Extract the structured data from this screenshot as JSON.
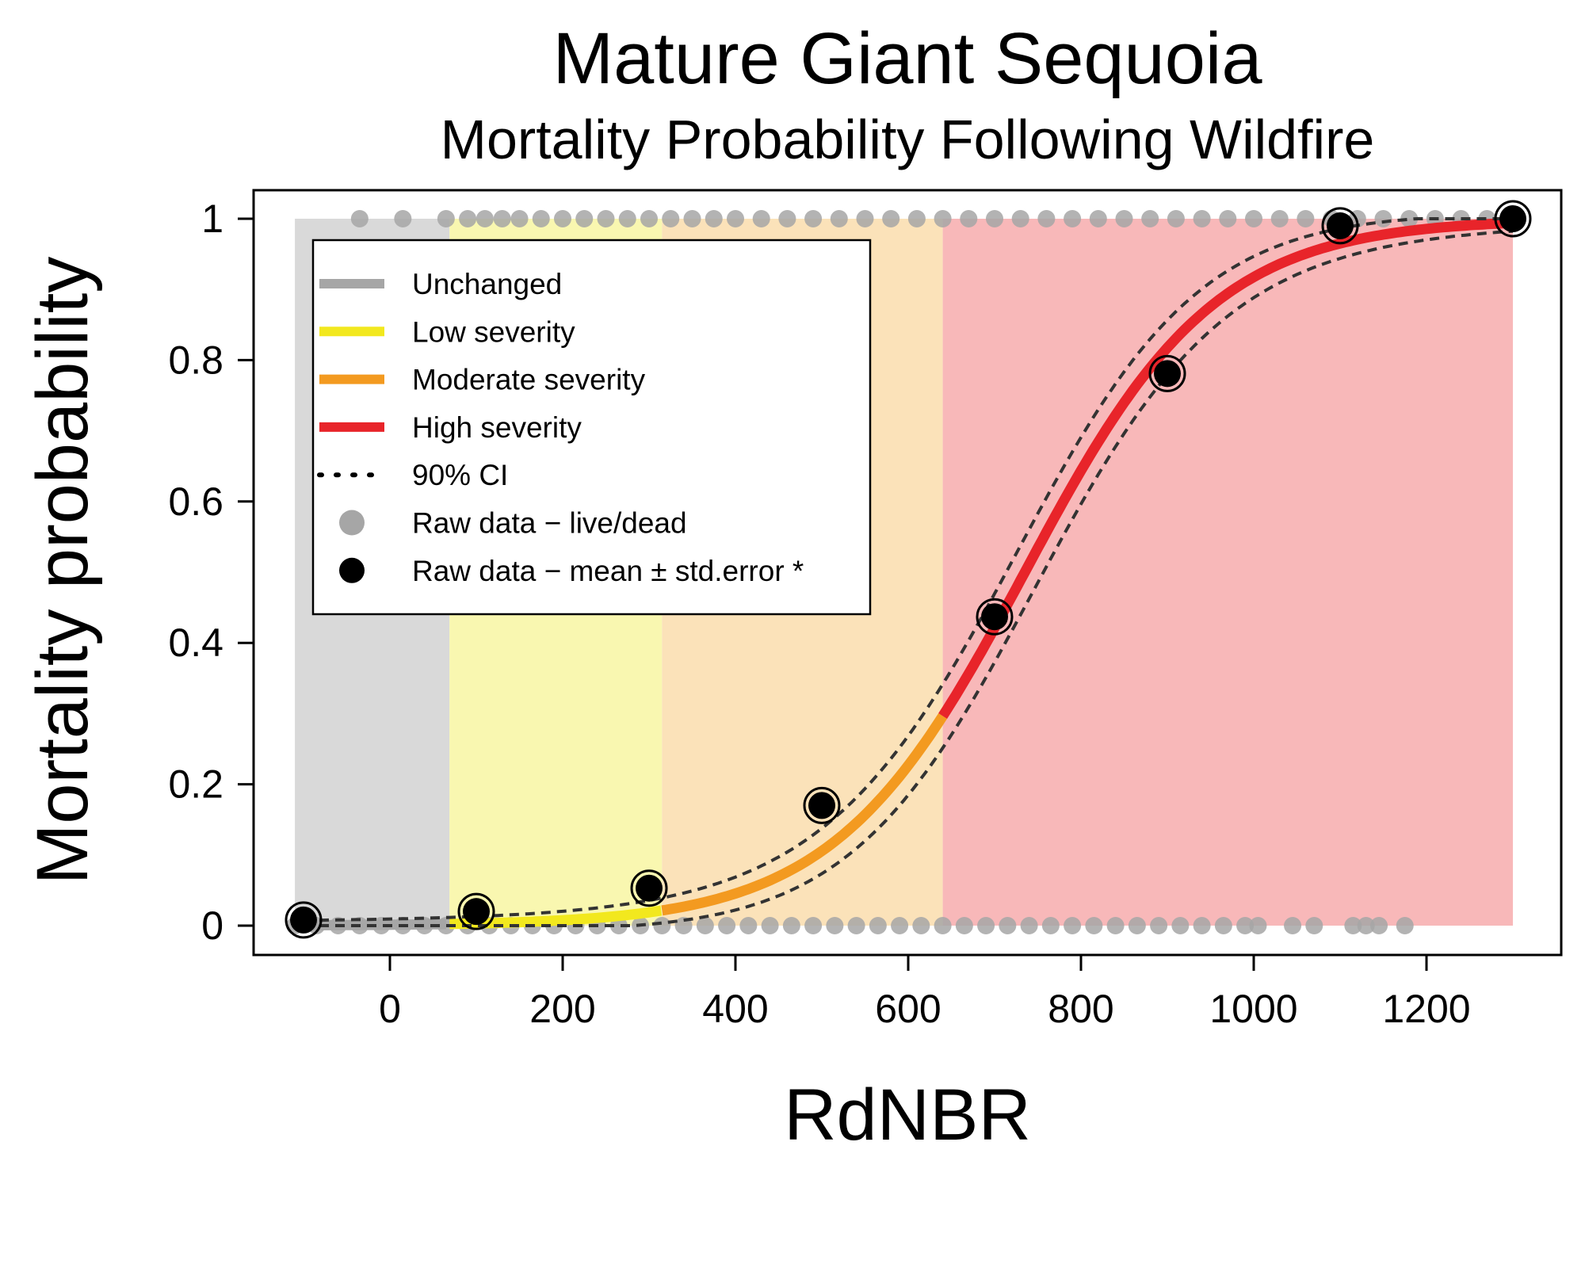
{
  "chart_data": {
    "type": "line",
    "title": "Mature Giant Sequoia",
    "subtitle": "Mortality Probability Following Wildfire",
    "xlabel": "RdNBR",
    "ylabel": "Mortality probability",
    "xlim": [
      -160,
      1350
    ],
    "ylim": [
      -0.04,
      1.04
    ],
    "x_ticks": [
      0,
      200,
      400,
      600,
      800,
      1000,
      1200
    ],
    "x_tick_labels": [
      "0",
      "200",
      "400",
      "600",
      "800",
      "1000",
      "1200"
    ],
    "y_ticks": [
      0,
      0.2,
      0.4,
      0.6,
      0.8,
      1
    ],
    "y_tick_labels": [
      "0",
      "0.2",
      "0.4",
      "0.6",
      "0.8",
      "1"
    ],
    "grid": false,
    "legend_position": "top-left",
    "legend": [
      {
        "label": "Unchanged",
        "kind": "line",
        "color": "#a6a6a6"
      },
      {
        "label": "Low severity",
        "kind": "line",
        "color": "#f2e81e"
      },
      {
        "label": "Moderate severity",
        "kind": "line",
        "color": "#f39a20"
      },
      {
        "label": "High severity",
        "kind": "line",
        "color": "#e8242a"
      },
      {
        "label": "90% CI",
        "kind": "dotted",
        "color": "#000000"
      },
      {
        "label": "Raw data − live/dead",
        "kind": "point",
        "color": "#a6a6a6"
      },
      {
        "label": "Raw data − mean ± std.error *",
        "kind": "point",
        "color": "#000000"
      }
    ],
    "severity_bands": [
      {
        "name": "Unchanged",
        "x_range": [
          -110,
          69
        ],
        "color": "#d9d9d9"
      },
      {
        "name": "Low severity",
        "x_range": [
          69,
          315
        ],
        "color": "#f9f7b0"
      },
      {
        "name": "Moderate severity",
        "x_range": [
          315,
          640
        ],
        "color": "#fbe2b9"
      },
      {
        "name": "High severity",
        "x_range": [
          640,
          1300
        ],
        "color": "#f8b8b9"
      }
    ],
    "model": {
      "form": "logistic",
      "x_range": [
        -100,
        1300
      ],
      "midpoint": 735,
      "scale": 110,
      "ci_band": 0.022
    },
    "mean_points": [
      {
        "x": -100,
        "y": 0.008
      },
      {
        "x": 100,
        "y": 0.02
      },
      {
        "x": 300,
        "y": 0.053
      },
      {
        "x": 500,
        "y": 0.17
      },
      {
        "x": 700,
        "y": 0.437
      },
      {
        "x": 900,
        "y": 0.781
      },
      {
        "x": 1100,
        "y": 0.99
      },
      {
        "x": 1300,
        "y": 1.0
      }
    ],
    "raw_live_dead": {
      "dead_y1": [
        -35,
        15,
        65,
        90,
        110,
        130,
        150,
        175,
        200,
        225,
        250,
        275,
        300,
        325,
        350,
        375,
        400,
        430,
        460,
        490,
        520,
        550,
        580,
        610,
        640,
        670,
        700,
        730,
        760,
        790,
        820,
        850,
        880,
        910,
        940,
        970,
        1000,
        1030,
        1060,
        1090,
        1120,
        1150,
        1180,
        1210,
        1240,
        1270,
        1300
      ],
      "live_y0": [
        -110,
        -85,
        -60,
        -35,
        -10,
        15,
        40,
        65,
        90,
        115,
        140,
        165,
        190,
        215,
        240,
        265,
        290,
        315,
        340,
        365,
        390,
        415,
        440,
        465,
        490,
        515,
        540,
        565,
        590,
        615,
        640,
        665,
        690,
        715,
        740,
        765,
        790,
        815,
        840,
        865,
        890,
        915,
        940,
        965,
        990,
        1005,
        1045,
        1070,
        1115,
        1130,
        1145,
        1175
      ]
    }
  }
}
